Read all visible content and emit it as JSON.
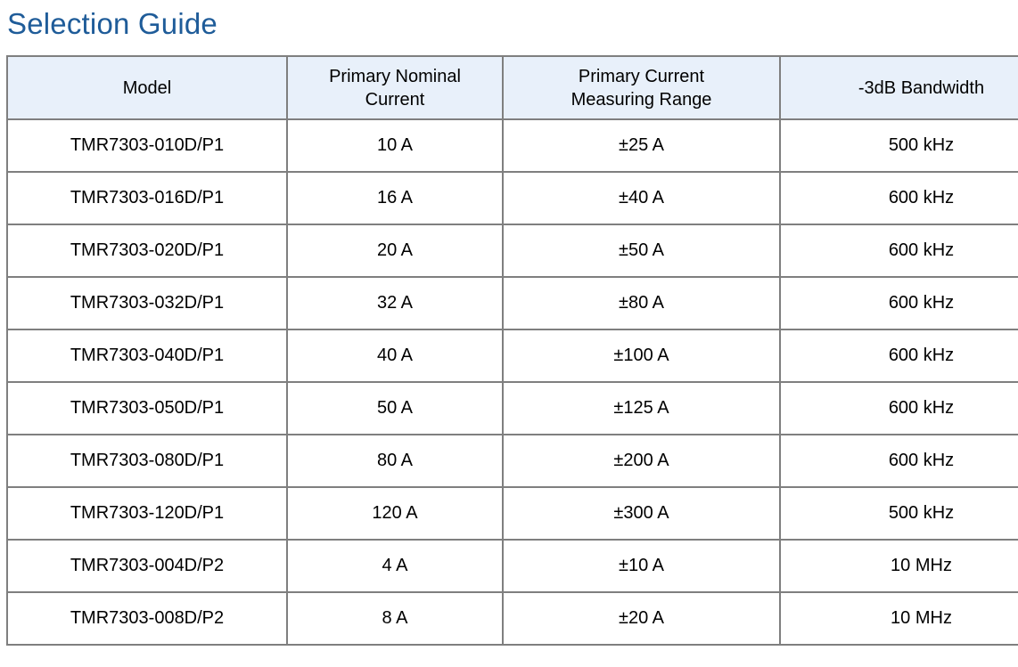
{
  "page": {
    "title": "Selection Guide"
  },
  "table": {
    "columns": [
      "Model",
      "Primary Nominal\nCurrent",
      "Primary Current\nMeasuring Range",
      "-3dB Bandwidth"
    ],
    "rows": [
      [
        "TMR7303-010D/P1",
        "10 A",
        "±25 A",
        "500 kHz"
      ],
      [
        "TMR7303-016D/P1",
        "16 A",
        "±40 A",
        "600 kHz"
      ],
      [
        "TMR7303-020D/P1",
        "20 A",
        "±50 A",
        "600 kHz"
      ],
      [
        "TMR7303-032D/P1",
        "32 A",
        "±80 A",
        "600 kHz"
      ],
      [
        "TMR7303-040D/P1",
        "40 A",
        "±100 A",
        "600 kHz"
      ],
      [
        "TMR7303-050D/P1",
        "50 A",
        "±125 A",
        "600 kHz"
      ],
      [
        "TMR7303-080D/P1",
        "80 A",
        "±200 A",
        "600 kHz"
      ],
      [
        "TMR7303-120D/P1",
        "120 A",
        "±300 A",
        "500 kHz"
      ],
      [
        "TMR7303-004D/P2",
        "4 A",
        "±10 A",
        "10 MHz"
      ],
      [
        "TMR7303-008D/P2",
        "8 A",
        "±20 A",
        "10 MHz"
      ]
    ]
  },
  "colors": {
    "title_blue": "#1f5c99",
    "header_bg": "#e8f0fa",
    "border_gray": "#7f7f7f",
    "cell_text": "#000000"
  }
}
